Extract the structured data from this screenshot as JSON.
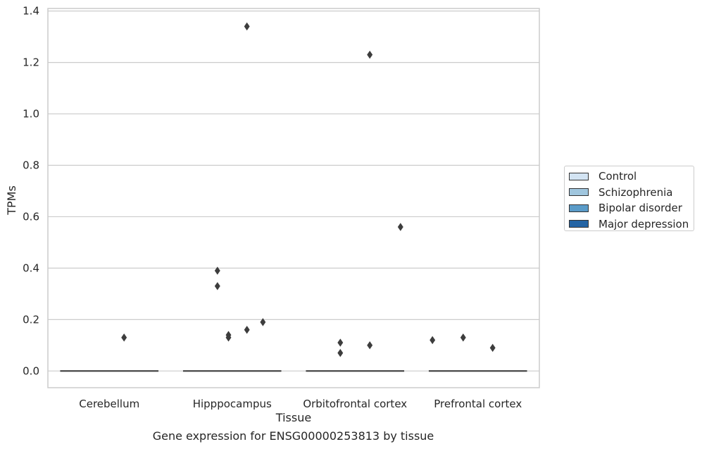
{
  "chart_data": {
    "type": "box",
    "caption": "Gene expression for ENSG00000253813 by tissue",
    "xlabel": "Tissue",
    "ylabel": "TPMs",
    "ylim": [
      -0.065,
      1.41
    ],
    "yticks": [
      "0.0",
      "0.2",
      "0.4",
      "0.6",
      "0.8",
      "1.0",
      "1.2",
      "1.4"
    ],
    "ytick_values": [
      0.0,
      0.2,
      0.4,
      0.6,
      0.8,
      1.0,
      1.2,
      1.4
    ],
    "categories": [
      "Cerebellum",
      "Hipppocampus",
      "Orbitofrontal cortex",
      "Prefrontal cortex"
    ],
    "grid": true,
    "legend_position": "right",
    "series": [
      {
        "name": "Control",
        "color": "#d3e4f3"
      },
      {
        "name": "Schizophrenia",
        "color": "#a0c6de"
      },
      {
        "name": "Bipolar disorder",
        "color": "#5a9bc8"
      },
      {
        "name": "Major depression",
        "color": "#2464a4"
      }
    ],
    "medians": [
      0.0,
      0.0,
      0.0,
      0.0
    ],
    "outliers": [
      {
        "category": "Cerebellum",
        "offset": 0.12,
        "value": 0.13
      },
      {
        "category": "Hipppocampus",
        "offset": -0.12,
        "value": 0.39
      },
      {
        "category": "Hipppocampus",
        "offset": -0.12,
        "value": 0.33
      },
      {
        "category": "Hipppocampus",
        "offset": -0.03,
        "value": 0.14
      },
      {
        "category": "Hipppocampus",
        "offset": -0.03,
        "value": 0.13
      },
      {
        "category": "Hipppocampus",
        "offset": 0.12,
        "value": 1.34
      },
      {
        "category": "Hipppocampus",
        "offset": 0.12,
        "value": 0.16
      },
      {
        "category": "Hipppocampus",
        "offset": 0.25,
        "value": 0.19
      },
      {
        "category": "Orbitofrontal cortex",
        "offset": -0.12,
        "value": 0.11
      },
      {
        "category": "Orbitofrontal cortex",
        "offset": -0.12,
        "value": 0.07
      },
      {
        "category": "Orbitofrontal cortex",
        "offset": 0.12,
        "value": 1.23
      },
      {
        "category": "Orbitofrontal cortex",
        "offset": 0.12,
        "value": 0.1
      },
      {
        "category": "Orbitofrontal cortex",
        "offset": 0.37,
        "value": 0.56
      },
      {
        "category": "Prefrontal cortex",
        "offset": -0.37,
        "value": 0.12
      },
      {
        "category": "Prefrontal cortex",
        "offset": -0.12,
        "value": 0.13
      },
      {
        "category": "Prefrontal cortex",
        "offset": 0.12,
        "value": 0.09
      }
    ]
  }
}
